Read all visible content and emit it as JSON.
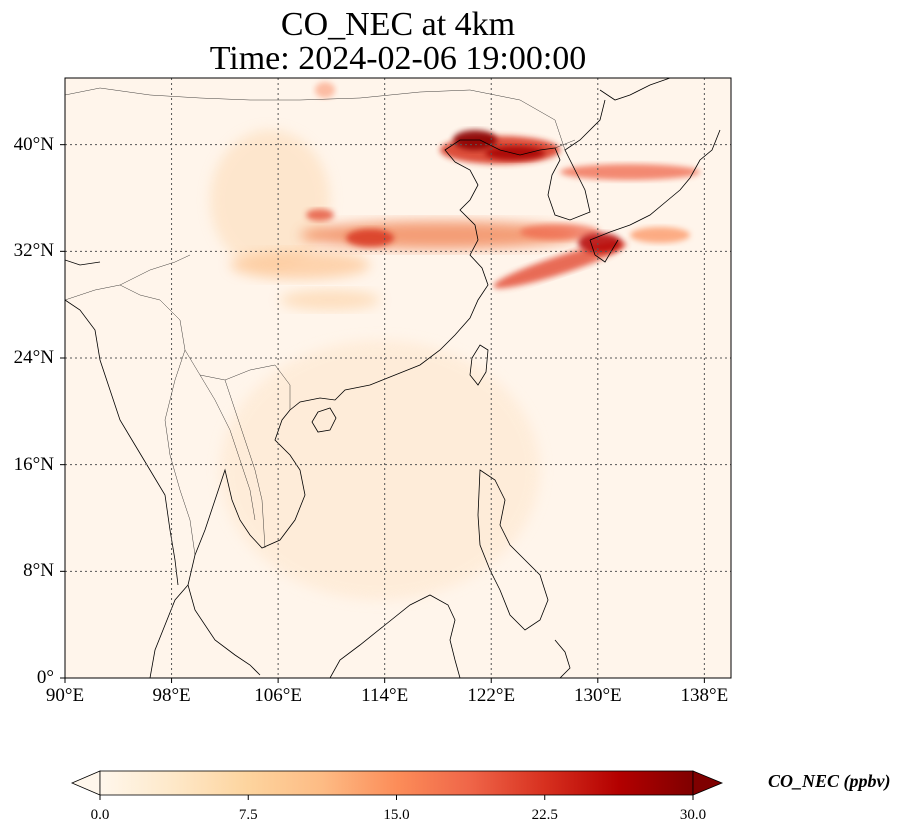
{
  "title": {
    "line1": "CO_NEC at 4km",
    "line2": "Time: 2024-02-06 19:00:00"
  },
  "map": {
    "projection": "PlateCarree",
    "lon_range": [
      90,
      140
    ],
    "lat_range": [
      0,
      45
    ],
    "gridlines": "dotted",
    "lat_ticks": [
      {
        "value": 0,
        "label": "0°"
      },
      {
        "value": 8,
        "label": "8°N"
      },
      {
        "value": 16,
        "label": "16°N"
      },
      {
        "value": 24,
        "label": "24°N"
      },
      {
        "value": 32,
        "label": "32°N"
      },
      {
        "value": 40,
        "label": "40°N"
      }
    ],
    "lon_ticks": [
      {
        "value": 90,
        "label": "90°E"
      },
      {
        "value": 98,
        "label": "98°E"
      },
      {
        "value": 106,
        "label": "106°E"
      },
      {
        "value": 114,
        "label": "114°E"
      },
      {
        "value": 122,
        "label": "122°E"
      },
      {
        "value": 130,
        "label": "130°E"
      },
      {
        "value": 138,
        "label": "138°E"
      }
    ],
    "background_color": "#fff5eb",
    "coastline_color": "#000000"
  },
  "colorbar": {
    "label": "CO_NEC (ppbv)",
    "colormap": "OrRd",
    "range": [
      0.0,
      30.0
    ],
    "ticks": [
      "0.0",
      "7.5",
      "15.0",
      "22.5",
      "30.0"
    ],
    "extend": "both",
    "colors": [
      "#fff7ec",
      "#fee8c8",
      "#fdd49e",
      "#fdbb84",
      "#fc8d59",
      "#ef6548",
      "#d7301f",
      "#b30000",
      "#7f0000"
    ]
  }
}
